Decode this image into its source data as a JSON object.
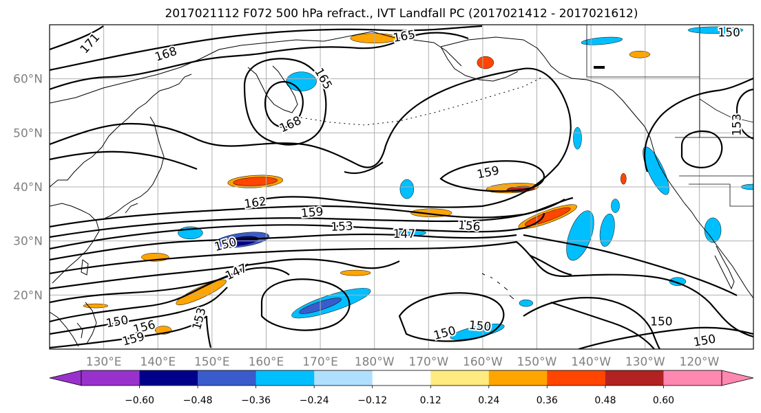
{
  "title": "2017021112 F072 500 hPa refract., IVT Landfall PC (2017021412 - 2017021612)",
  "map": {
    "lon_range": [
      120,
      250
    ],
    "lat_range": [
      10,
      70
    ],
    "lon_ticks": [
      {
        "lon": 130,
        "label": "130°E"
      },
      {
        "lon": 140,
        "label": "140°E"
      },
      {
        "lon": 150,
        "label": "150°E"
      },
      {
        "lon": 160,
        "label": "160°E"
      },
      {
        "lon": 170,
        "label": "170°E"
      },
      {
        "lon": 180,
        "label": "180°W"
      },
      {
        "lon": 190,
        "label": "170°W"
      },
      {
        "lon": 200,
        "label": "160°W"
      },
      {
        "lon": 210,
        "label": "150°W"
      },
      {
        "lon": 220,
        "label": "140°W"
      },
      {
        "lon": 230,
        "label": "130°W"
      },
      {
        "lon": 240,
        "label": "120°W"
      }
    ],
    "lat_ticks": [
      {
        "lat": 20,
        "label": "20°N"
      },
      {
        "lat": 30,
        "label": "30°N"
      },
      {
        "lat": 40,
        "label": "40°N"
      },
      {
        "lat": 50,
        "label": "50°N"
      },
      {
        "lat": 60,
        "label": "60°N"
      }
    ],
    "grid": true,
    "contour_labels": [
      {
        "text": "171",
        "lon": 127.5,
        "lat": 66.5,
        "rot": -48
      },
      {
        "text": "168",
        "lon": 141.5,
        "lat": 64.5,
        "rot": -18
      },
      {
        "text": "165",
        "lon": 185.5,
        "lat": 67.8,
        "rot": -10
      },
      {
        "text": "165",
        "lon": 170.5,
        "lat": 60.0,
        "rot": 60
      },
      {
        "text": "168",
        "lon": 164.5,
        "lat": 51.5,
        "rot": -25
      },
      {
        "text": "159",
        "lon": 201.0,
        "lat": 42.6,
        "rot": -12
      },
      {
        "text": "162",
        "lon": 158.0,
        "lat": 37.0,
        "rot": -8
      },
      {
        "text": "159",
        "lon": 168.5,
        "lat": 35.2,
        "rot": -5
      },
      {
        "text": "153",
        "lon": 174.0,
        "lat": 32.6,
        "rot": -3
      },
      {
        "text": "156",
        "lon": 197.5,
        "lat": 32.7,
        "rot": 5
      },
      {
        "text": "147",
        "lon": 185.5,
        "lat": 31.2,
        "rot": 0
      },
      {
        "text": "150",
        "lon": 152.5,
        "lat": 29.3,
        "rot": -15
      },
      {
        "text": "147",
        "lon": 154.5,
        "lat": 24.2,
        "rot": -25
      },
      {
        "text": "153",
        "lon": 147.7,
        "lat": 15.6,
        "rot": -75
      },
      {
        "text": "156",
        "lon": 137.5,
        "lat": 14.0,
        "rot": -15
      },
      {
        "text": "150",
        "lon": 132.5,
        "lat": 15.0,
        "rot": -10
      },
      {
        "text": "159",
        "lon": 135.5,
        "lat": 11.8,
        "rot": -15
      },
      {
        "text": "150",
        "lon": 193.0,
        "lat": 12.9,
        "rot": -15
      },
      {
        "text": "150",
        "lon": 199.5,
        "lat": 14.2,
        "rot": 5
      },
      {
        "text": "150",
        "lon": 233.0,
        "lat": 15.0,
        "rot": 0
      },
      {
        "text": "150",
        "lon": 241.0,
        "lat": 11.5,
        "rot": -10
      },
      {
        "text": "153",
        "lon": 247.0,
        "lat": 51.5,
        "rot": -90
      },
      {
        "text": "150",
        "lon": 245.5,
        "lat": 68.5,
        "rot": 0
      }
    ]
  },
  "colorbar": {
    "colors": [
      "#9932cc",
      "#00008b",
      "#3a5bcc",
      "#00bfff",
      "#b0e0ff",
      "#ffffff",
      "#ffeb80",
      "#ffa500",
      "#ff4500",
      "#b22222",
      "#ff88b0"
    ],
    "tick_labels": [
      "−0.60",
      "−0.48",
      "−0.36",
      "−0.24",
      "−0.12",
      "0.12",
      "0.24",
      "0.36",
      "0.48",
      "0.60"
    ],
    "extend": "both"
  },
  "shading": [
    {
      "lon": 155.5,
      "lat": 30.2,
      "rx": 40,
      "ry": 10,
      "rot": -8,
      "level": "#3a5bcc"
    },
    {
      "lon": 155.5,
      "lat": 30.0,
      "rx": 24,
      "ry": 6,
      "rot": -8,
      "level": "#00008b"
    },
    {
      "lon": 158.0,
      "lat": 41.0,
      "rx": 40,
      "ry": 9,
      "rot": -3,
      "level": "#ffa500"
    },
    {
      "lon": 158.0,
      "lat": 41.0,
      "rx": 32,
      "ry": 6,
      "rot": -3,
      "level": "#ff4500"
    },
    {
      "lon": 212.0,
      "lat": 34.5,
      "rx": 45,
      "ry": 9,
      "rot": -20,
      "level": "#ffa500"
    },
    {
      "lon": 212.0,
      "lat": 34.5,
      "rx": 35,
      "ry": 6,
      "rot": -20,
      "level": "#ff4500"
    },
    {
      "lon": 205.5,
      "lat": 39.8,
      "rx": 38,
      "ry": 7,
      "rot": -3,
      "level": "#ffa500"
    },
    {
      "lon": 207.0,
      "lat": 39.6,
      "rx": 20,
      "ry": 4,
      "rot": -3,
      "level": "#b22222"
    },
    {
      "lon": 148.0,
      "lat": 20.5,
      "rx": 40,
      "ry": 8,
      "rot": -25,
      "level": "#ffa500"
    },
    {
      "lon": 172.0,
      "lat": 18.5,
      "rx": 60,
      "ry": 12,
      "rot": -18,
      "level": "#00bfff"
    },
    {
      "lon": 170.0,
      "lat": 18.0,
      "rx": 32,
      "ry": 6,
      "rot": -18,
      "level": "#3a5bcc"
    },
    {
      "lon": 199.0,
      "lat": 13.2,
      "rx": 40,
      "ry": 8,
      "rot": -12,
      "level": "#00bfff"
    },
    {
      "lon": 218.0,
      "lat": 31.0,
      "rx": 16,
      "ry": 38,
      "rot": 20,
      "level": "#00bfff"
    },
    {
      "lon": 232.0,
      "lat": 43.0,
      "rx": 11,
      "ry": 38,
      "rot": -25,
      "level": "#00bfff"
    },
    {
      "lon": 223.0,
      "lat": 32.0,
      "rx": 10,
      "ry": 24,
      "rot": 10,
      "level": "#00bfff"
    },
    {
      "lon": 242.5,
      "lat": 32.0,
      "rx": 12,
      "ry": 18,
      "rot": 0,
      "level": "#00bfff"
    },
    {
      "lon": 146.0,
      "lat": 31.5,
      "rx": 18,
      "ry": 9,
      "rot": 0,
      "level": "#00bfff"
    },
    {
      "lon": 166.5,
      "lat": 59.5,
      "rx": 22,
      "ry": 14,
      "rot": 0,
      "level": "#00bfff"
    },
    {
      "lon": 180.0,
      "lat": 67.5,
      "rx": 35,
      "ry": 7,
      "rot": 0,
      "level": "#ffa500"
    },
    {
      "lon": 190.5,
      "lat": 35.2,
      "rx": 30,
      "ry": 6,
      "rot": 0,
      "level": "#ffa500"
    },
    {
      "lon": 139.5,
      "lat": 27.0,
      "rx": 20,
      "ry": 6,
      "rot": 0,
      "level": "#ffa500"
    },
    {
      "lon": 186.0,
      "lat": 39.6,
      "rx": 10,
      "ry": 14,
      "rot": 0,
      "level": "#00bfff"
    },
    {
      "lon": 187.0,
      "lat": 31.5,
      "rx": 20,
      "ry": 4,
      "rot": 0,
      "level": "#00bfff"
    },
    {
      "lon": 176.5,
      "lat": 24.1,
      "rx": 22,
      "ry": 4,
      "rot": 0,
      "level": "#ffa500"
    },
    {
      "lon": 200.5,
      "lat": 63.0,
      "rx": 12,
      "ry": 9,
      "rot": 0,
      "level": "#ff4500"
    },
    {
      "lon": 229.0,
      "lat": 64.5,
      "rx": 15,
      "ry": 5,
      "rot": 0,
      "level": "#ffa500"
    },
    {
      "lon": 222.0,
      "lat": 67.0,
      "rx": 30,
      "ry": 5,
      "rot": -5,
      "level": "#00bfff"
    },
    {
      "lon": 243.0,
      "lat": 69.0,
      "rx": 40,
      "ry": 5,
      "rot": 0,
      "level": "#00bfff"
    },
    {
      "lon": 128.5,
      "lat": 18.0,
      "rx": 18,
      "ry": 3,
      "rot": 0,
      "level": "#ffa500"
    },
    {
      "lon": 141.0,
      "lat": 13.5,
      "rx": 12,
      "ry": 6,
      "rot": 0,
      "level": "#ffa500"
    },
    {
      "lon": 217.5,
      "lat": 49.0,
      "rx": 6,
      "ry": 16,
      "rot": 0,
      "level": "#00bfff"
    },
    {
      "lon": 236.0,
      "lat": 22.5,
      "rx": 12,
      "ry": 6,
      "rot": 0,
      "level": "#00bfff"
    },
    {
      "lon": 208.0,
      "lat": 18.5,
      "rx": 10,
      "ry": 5,
      "rot": 0,
      "level": "#00bfff"
    },
    {
      "lon": 224.5,
      "lat": 36.5,
      "rx": 6,
      "ry": 10,
      "rot": 0,
      "level": "#00bfff"
    },
    {
      "lon": 226.0,
      "lat": 41.5,
      "rx": 4,
      "ry": 8,
      "rot": 0,
      "level": "#ff4500"
    },
    {
      "lon": 250.0,
      "lat": 40.0,
      "rx": 18,
      "ry": 4,
      "rot": 0,
      "level": "#00bfff"
    }
  ]
}
